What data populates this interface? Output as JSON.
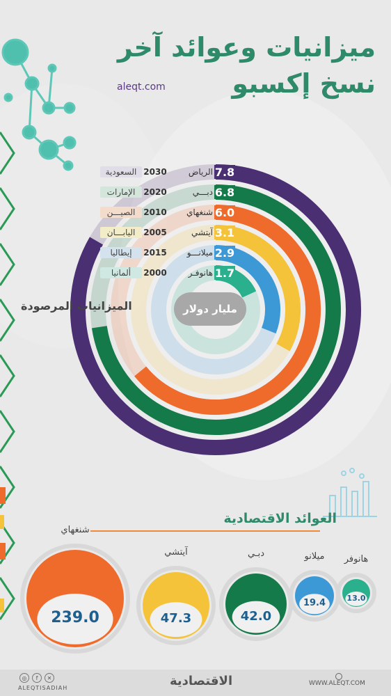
{
  "title": {
    "line1": "ميزانيات وعوائد آخر",
    "line2": "نسخ إكسبو"
  },
  "site": "aleqt.com",
  "chart_data": [
    {
      "type": "radial-bar",
      "label": "الميزانيات المرصودة",
      "unit": "مليار دولار",
      "series": [
        {
          "city": "الرياض",
          "year": "2030",
          "country": "السعودية",
          "value": 7.8,
          "color": "#4b2f73"
        },
        {
          "city": "دبـــي",
          "year": "2020",
          "country": "الإمارات",
          "value": 6.8,
          "color": "#157a4a"
        },
        {
          "city": "شنغهاي",
          "year": "2010",
          "country": "الصيـــن",
          "value": 6.0,
          "color": "#ef6b2b"
        },
        {
          "city": "آيتشي",
          "year": "2005",
          "country": "اليابـــان",
          "value": 3.1,
          "color": "#f5c33a"
        },
        {
          "city": "ميلانـــو",
          "year": "2015",
          "country": "إيطاليا",
          "value": 2.9,
          "color": "#3d98d6"
        },
        {
          "city": "هانوفـر",
          "year": "2000",
          "country": "ألمانيا",
          "value": 1.7,
          "color": "#2bb08e"
        }
      ]
    },
    {
      "type": "gauge",
      "title": "العوائد الاقتصادية",
      "items": [
        {
          "city": "شنغهاي",
          "value": "239.0",
          "color": "#ef6b2b"
        },
        {
          "city": "آيتشي",
          "value": "47.3",
          "color": "#f5c33a"
        },
        {
          "city": "دبـي",
          "value": "42.0",
          "color": "#157a4a"
        },
        {
          "city": "ميلانو",
          "value": "19.4",
          "color": "#3d98d6"
        },
        {
          "city": "هانوفر",
          "value": "13.0",
          "color": "#2bb08e"
        }
      ]
    }
  ],
  "footer": {
    "handle": "ALEQTISADIAH",
    "logo": "الاقتصادية",
    "site": "WWW.ALEQT.COM"
  }
}
